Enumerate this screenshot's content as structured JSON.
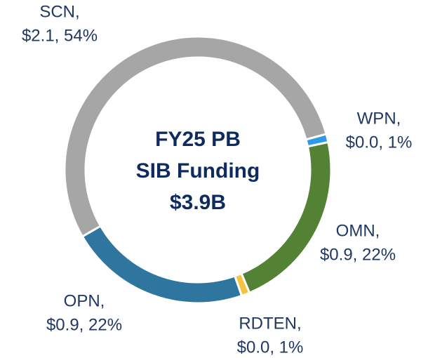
{
  "chart_data": {
    "type": "donut",
    "title": [
      "FY25 PB",
      "SIB Funding",
      "$3.9B"
    ],
    "categories": [
      "SCN,",
      "WPN,",
      "OMN,",
      "RDTEN,",
      "OPN,"
    ],
    "values": [
      54,
      1,
      22,
      1,
      22
    ],
    "value_labels": [
      "$2.1, 54%",
      "$0.0, 1%",
      "$0.9, 22%",
      "$0.0, 1%",
      "$0.9, 22%"
    ],
    "colors": [
      "#a6a6a6",
      "#2e9be6",
      "#548235",
      "#f5c342",
      "#2e75a0"
    ]
  }
}
